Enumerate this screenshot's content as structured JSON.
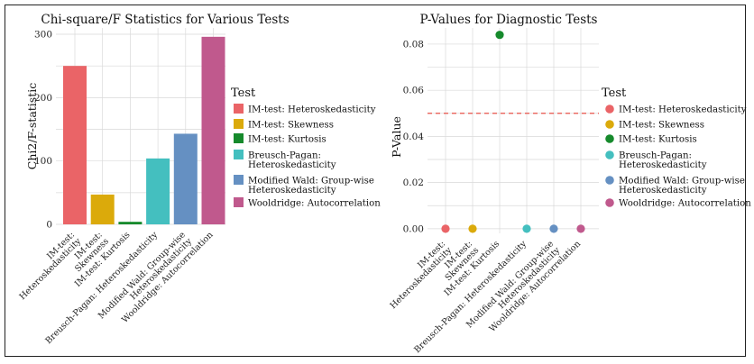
{
  "chart_data": [
    {
      "type": "bar",
      "title": "Chi-square/F Statistics for Various Tests",
      "xlabel": "",
      "ylabel": "Chi2/F-statistic",
      "ylim": [
        0,
        310
      ],
      "yticks": [
        0,
        100,
        200,
        300
      ],
      "grid": true,
      "categories": [
        "IM-test: Heteroskedasticity",
        "IM-test: Skewness",
        "IM-test: Kurtosis",
        "Breusch-Pagan: Heteroskedasticity",
        "Modified Wald: Group-wise Heteroskedasticity",
        "Wooldridge: Autocorrelation"
      ],
      "tick_labels": [
        [
          "IM-test:",
          "Heteroskedasticity"
        ],
        [
          "IM-test:",
          "Skewness"
        ],
        [
          "IM-test: Kurtosis"
        ],
        [
          "Breusch-Pagan: Heteroskedasticity"
        ],
        [
          "Modified Wald: Group-wise",
          "Heteroskedasticity"
        ],
        [
          "Wooldridge: Autocorrelation"
        ]
      ],
      "values": [
        250,
        47,
        4,
        104,
        143,
        296
      ],
      "colors": [
        "#ea6467",
        "#dbaa0b",
        "#168a2c",
        "#44bfbf",
        "#6590c2",
        "#c0598d"
      ],
      "legend": {
        "title": "Test",
        "placement": "right",
        "entries": [
          [
            "IM-test: Heteroskedasticity"
          ],
          [
            "IM-test: Skewness"
          ],
          [
            "IM-test: Kurtosis"
          ],
          [
            "Breusch-Pagan:",
            "Heteroskedasticity"
          ],
          [
            "Modified Wald: Group-wise",
            "Heteroskedasticity"
          ],
          [
            "Wooldridge: Autocorrelation"
          ]
        ]
      }
    },
    {
      "type": "scatter",
      "title": "P-Values for Diagnostic Tests",
      "xlabel": "",
      "ylabel": "P-Value",
      "ylim": [
        -0.002,
        0.087
      ],
      "yticks": [
        0.0,
        0.02,
        0.04,
        0.06,
        0.08
      ],
      "ytick_labels": [
        "0.00",
        "0.02",
        "0.04",
        "0.06",
        "0.08"
      ],
      "grid": true,
      "categories": [
        "IM-test: Heteroskedasticity",
        "IM-test: Skewness",
        "IM-test: Kurtosis",
        "Breusch-Pagan: Heteroskedasticity",
        "Modified Wald: Group-wise Heteroskedasticity",
        "Wooldridge: Autocorrelation"
      ],
      "tick_labels": [
        [
          "IM-test:",
          "Heteroskedasticity"
        ],
        [
          "IM-test:",
          "Skewness"
        ],
        [
          "IM-test: Kurtosis"
        ],
        [
          "Breusch-Pagan: Heteroskedasticity"
        ],
        [
          "Modified Wald: Group-wise",
          "Heteroskedasticity"
        ],
        [
          "Wooldridge: Autocorrelation"
        ]
      ],
      "values": [
        0.0,
        0.0,
        0.084,
        0.0,
        0.0,
        0.0
      ],
      "colors": [
        "#ea6467",
        "#dbaa0b",
        "#168a2c",
        "#44bfbf",
        "#6590c2",
        "#c0598d"
      ],
      "reference_line": {
        "y": 0.05,
        "color": "#e8534a",
        "style": "dashed"
      },
      "legend": {
        "title": "Test",
        "placement": "right",
        "entries": [
          [
            "IM-test: Heteroskedasticity"
          ],
          [
            "IM-test: Skewness"
          ],
          [
            "IM-test: Kurtosis"
          ],
          [
            "Breusch-Pagan:",
            "Heteroskedasticity"
          ],
          [
            "Modified Wald: Group-wise",
            "Heteroskedasticity"
          ],
          [
            "Wooldridge: Autocorrelation"
          ]
        ]
      }
    }
  ]
}
